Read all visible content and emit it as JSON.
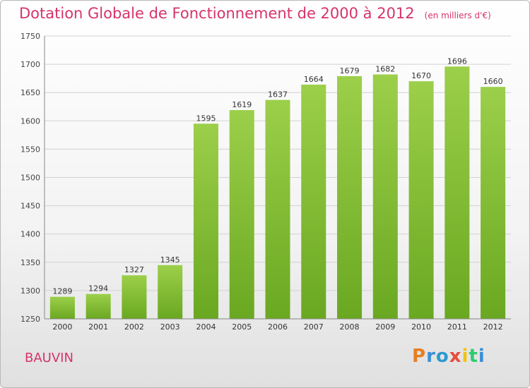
{
  "header": {
    "title": "Dotation Globale de Fonctionnement de 2000 à 2012",
    "unit": "(en milliers d'€)"
  },
  "footer": {
    "place": "BAUVIN"
  },
  "logo": {
    "letters": [
      "P",
      "r",
      "o",
      "x",
      "i",
      "t",
      "i"
    ],
    "colors": [
      "#e67e22",
      "#3a8fd6",
      "#2e9ad0",
      "#e74c3c",
      "#f1c40f",
      "#2ecc71",
      "#3a8fd6"
    ]
  },
  "chart_data": {
    "type": "bar",
    "title": "Dotation Globale de Fonctionnement de 2000 à 2012",
    "subtitle": "(en milliers d'€)",
    "xlabel": "",
    "ylabel": "",
    "categories": [
      "2000",
      "2001",
      "2002",
      "2003",
      "2004",
      "2005",
      "2006",
      "2007",
      "2008",
      "2009",
      "2010",
      "2011",
      "2012"
    ],
    "values": [
      1289,
      1294,
      1327,
      1345,
      1595,
      1619,
      1637,
      1664,
      1679,
      1682,
      1670,
      1696,
      1660
    ],
    "ylim": [
      1250,
      1750
    ],
    "yticks": [
      1250,
      1300,
      1350,
      1400,
      1450,
      1500,
      1550,
      1600,
      1650,
      1700,
      1750
    ],
    "grid": true,
    "bar_color_top": "#9ccf4a",
    "bar_color_bottom": "#6aa821"
  }
}
